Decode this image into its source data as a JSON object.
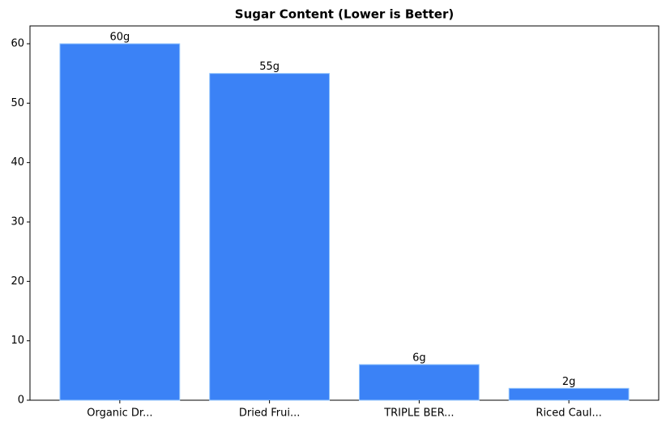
{
  "chart_data": {
    "type": "bar",
    "title": "Sugar Content (Lower is Better)",
    "categories": [
      "Organic Dr...",
      "Dried Frui...",
      "TRIPLE BER...",
      "Riced Caul..."
    ],
    "values": [
      60,
      55,
      6,
      2
    ],
    "value_labels": [
      "60g",
      "55g",
      "6g",
      "2g"
    ],
    "color": "#3b82f6",
    "ylim": [
      0,
      63
    ],
    "yticks": [
      0,
      10,
      20,
      30,
      40,
      50,
      60
    ],
    "grid": false
  }
}
